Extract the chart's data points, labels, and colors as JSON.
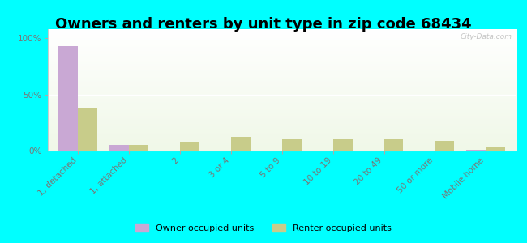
{
  "title": "Owners and renters by unit type in zip code 68434",
  "categories": [
    "1, detached",
    "1, attached",
    "2",
    "3 or 4",
    "5 to 9",
    "10 to 19",
    "20 to 49",
    "50 or more",
    "Mobile home"
  ],
  "owner_values": [
    93,
    5,
    0,
    0,
    0,
    0,
    0,
    0,
    1
  ],
  "renter_values": [
    38,
    5,
    8,
    12,
    11,
    10,
    10,
    9,
    3
  ],
  "owner_color": "#c9a8d4",
  "renter_color": "#c8cc8a",
  "background_color": "#00ffff",
  "plot_bg_top": "#f0f8e8",
  "plot_bg_bottom": "#e8f5d8",
  "ylabel_ticks": [
    "0%",
    "50%",
    "100%"
  ],
  "ytick_vals": [
    0,
    50,
    100
  ],
  "ylim": [
    0,
    108
  ],
  "bar_width": 0.38,
  "legend_owner": "Owner occupied units",
  "legend_renter": "Renter occupied units",
  "watermark": "City-Data.com",
  "title_fontsize": 13,
  "tick_fontsize": 7.5,
  "label_color": "#777777"
}
